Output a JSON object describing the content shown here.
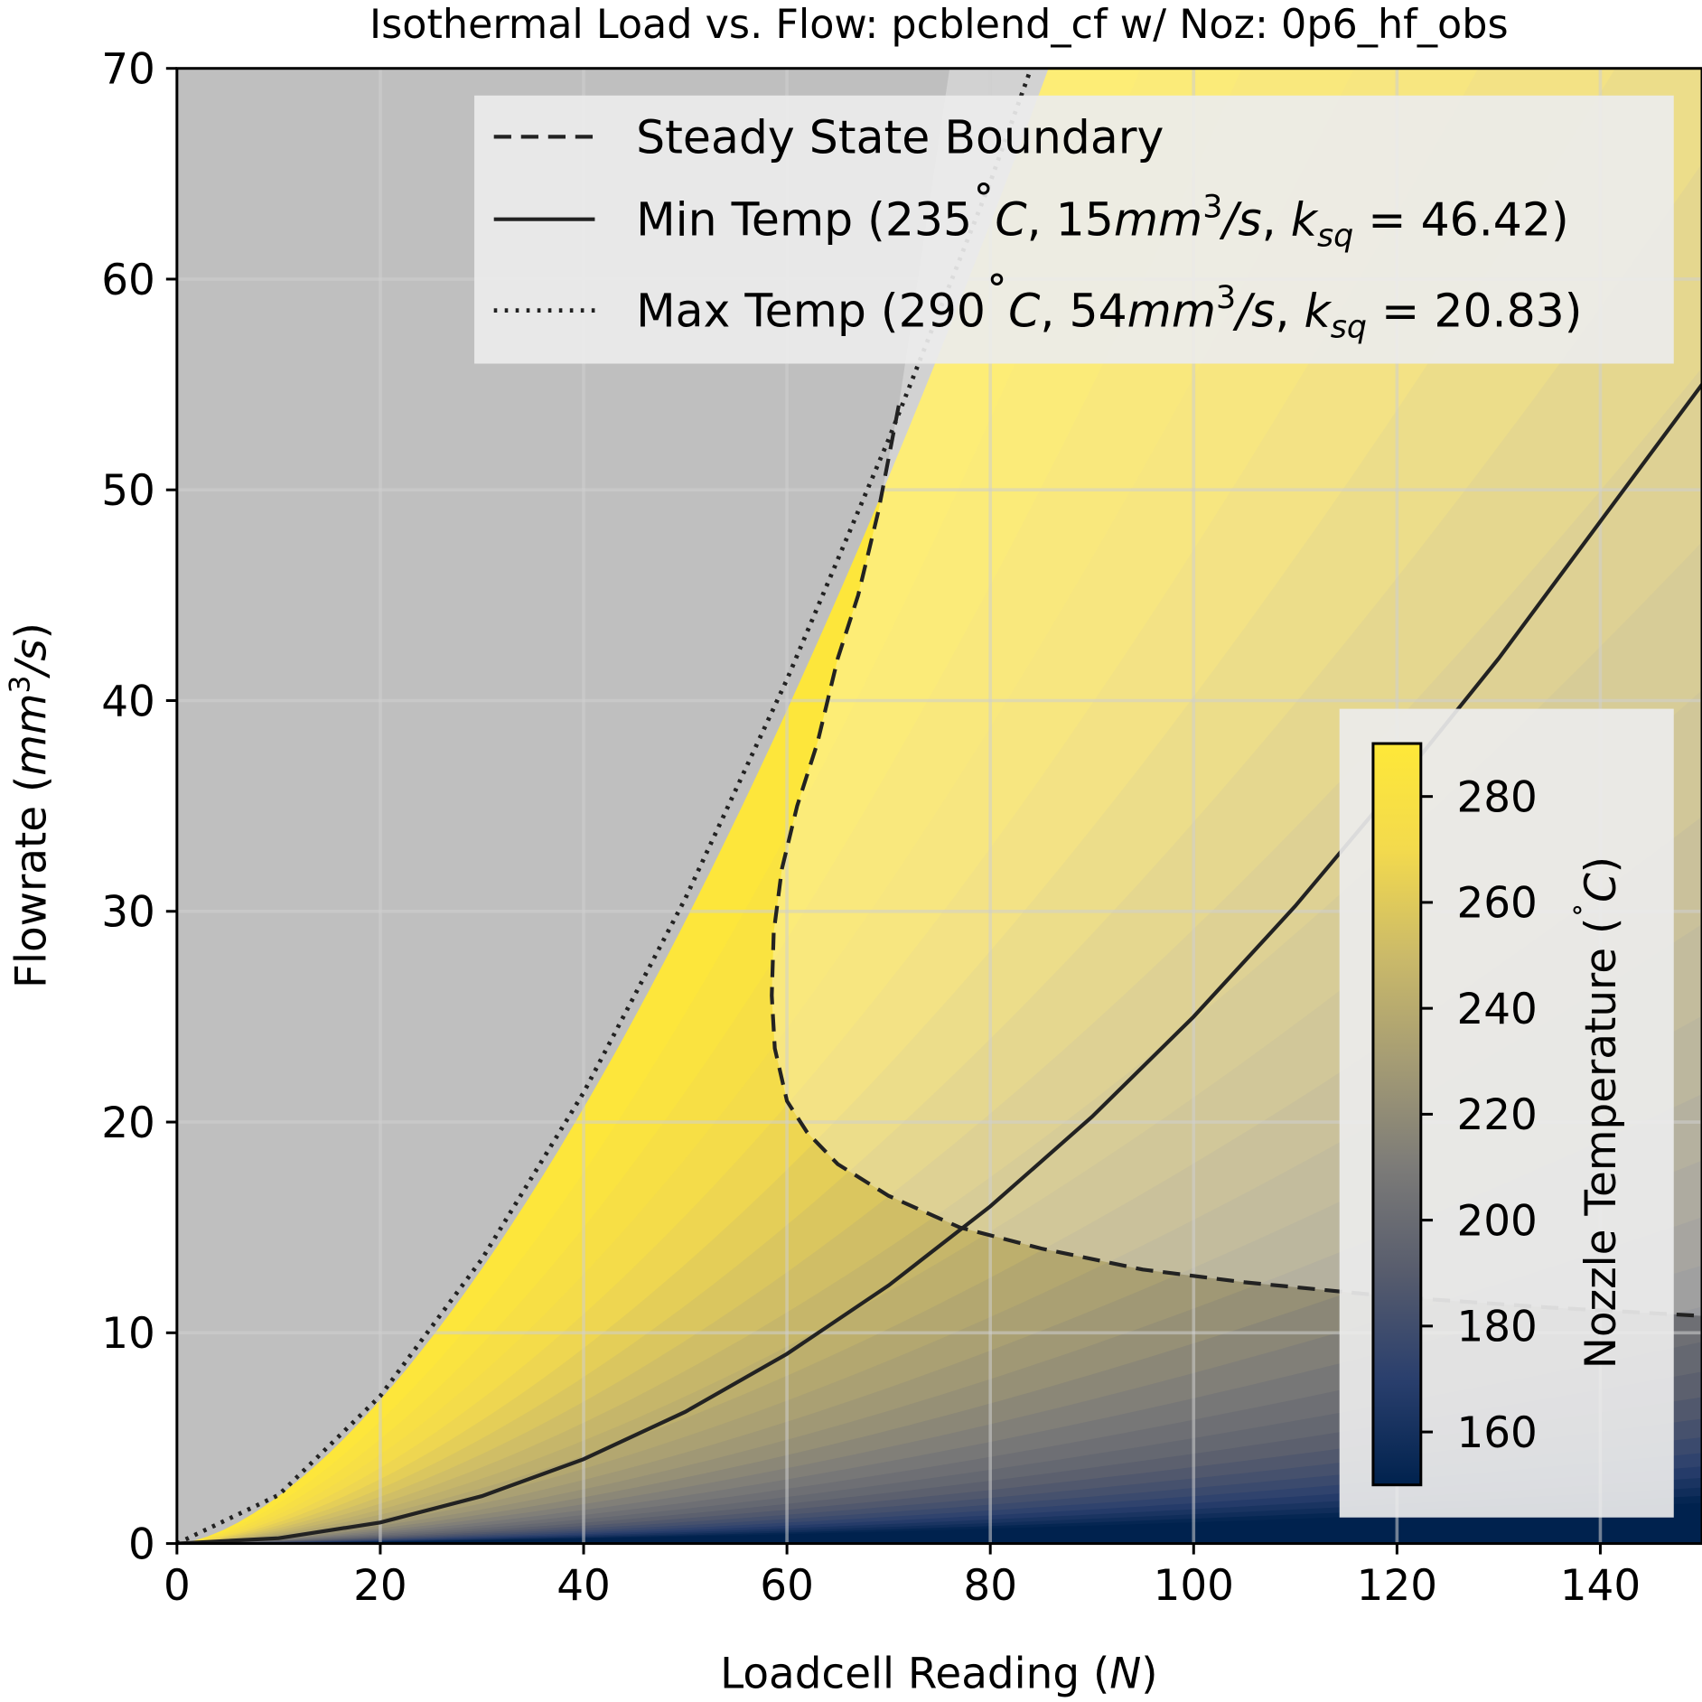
{
  "chart_data": {
    "type": "line",
    "title": "Isothermal Load vs. Flow: pcblend_cf w/ Noz: 0p6_hf_obs",
    "xlabel": {
      "text": "Loadcell Reading (",
      "italic": "N",
      "suffix": ")"
    },
    "ylabel": {
      "text": "Flowrate (",
      "italic": "mm",
      "sup": "3",
      "italic2": "/s",
      "suffix": ")"
    },
    "xlim": [
      0,
      150
    ],
    "ylim": [
      0,
      70
    ],
    "xticks": [
      0,
      20,
      40,
      60,
      80,
      100,
      120,
      140
    ],
    "yticks": [
      0,
      10,
      20,
      30,
      40,
      50,
      60,
      70
    ],
    "grid": true,
    "legend_placement": "upper-right",
    "series": [
      {
        "name": "Steady State Boundary",
        "style": "dashed",
        "x": [
          71,
          69,
          67,
          65,
          63,
          61,
          59.5,
          58.7,
          58.5,
          58.8,
          60,
          62,
          65,
          70,
          77,
          85,
          95,
          105,
          120,
          135,
          150
        ],
        "y": [
          54,
          49,
          45,
          42,
          38,
          35,
          32,
          29,
          26,
          23.5,
          21,
          19.5,
          18,
          16.5,
          15,
          14,
          13,
          12.4,
          11.7,
          11.2,
          10.8
        ]
      },
      {
        "name": "Min Temp",
        "legend_parts": [
          {
            "t": "Min Temp (235"
          },
          {
            "t": "˚",
            "raise": true
          },
          {
            "t": "C",
            "i": true
          },
          {
            "t": ", 15"
          },
          {
            "t": "mm",
            "i": true
          },
          {
            "t": "3",
            "sup": true
          },
          {
            "t": "/s",
            "i": true
          },
          {
            "t": ", "
          },
          {
            "t": "k",
            "i": true
          },
          {
            "t": "sq",
            "sub": true,
            "i": true
          },
          {
            "t": " = 46.42)"
          }
        ],
        "style": "solid",
        "x": [
          0,
          10,
          20,
          30,
          40,
          50,
          60,
          70,
          80,
          90,
          100,
          110,
          120,
          130,
          140,
          150
        ],
        "y": [
          0,
          0.25,
          1.0,
          2.25,
          4.0,
          6.25,
          9.0,
          12.25,
          16.0,
          20.25,
          25.0,
          30.25,
          36.0,
          42.0,
          48.5,
          55.0
        ]
      },
      {
        "name": "Max Temp",
        "legend_parts": [
          {
            "t": "Max Temp (290"
          },
          {
            "t": "˚",
            "raise": true
          },
          {
            "t": "C",
            "i": true
          },
          {
            "t": ", 54"
          },
          {
            "t": "mm",
            "i": true
          },
          {
            "t": "3",
            "sup": true
          },
          {
            "t": "/s",
            "i": true
          },
          {
            "t": ", "
          },
          {
            "t": "k",
            "i": true
          },
          {
            "t": "sq",
            "sub": true,
            "i": true
          },
          {
            "t": " = 20.83)"
          }
        ],
        "style": "dotted",
        "x": [
          0,
          10,
          20,
          30,
          40,
          50,
          60,
          70,
          80,
          84
        ],
        "y": [
          0,
          2.3,
          7.0,
          13.5,
          21.4,
          30.6,
          41.0,
          52.4,
          64.6,
          70
        ]
      }
    ],
    "colorbar": {
      "label": {
        "text": "Nozzle Temperature (",
        "sup": "˚",
        "italic": "C",
        "suffix": ")"
      },
      "range": [
        150,
        290
      ],
      "ticks": [
        160,
        180,
        200,
        220,
        240,
        260,
        280
      ],
      "colormap": "cividis",
      "stops": [
        "#00224e",
        "#2a3f6d",
        "#575c6d",
        "#7c7b78",
        "#a59c74",
        "#cbba69",
        "#f3da4d",
        "#fee838"
      ]
    },
    "colors": {
      "background": "#bfbfbf",
      "line": "#222222"
    }
  }
}
